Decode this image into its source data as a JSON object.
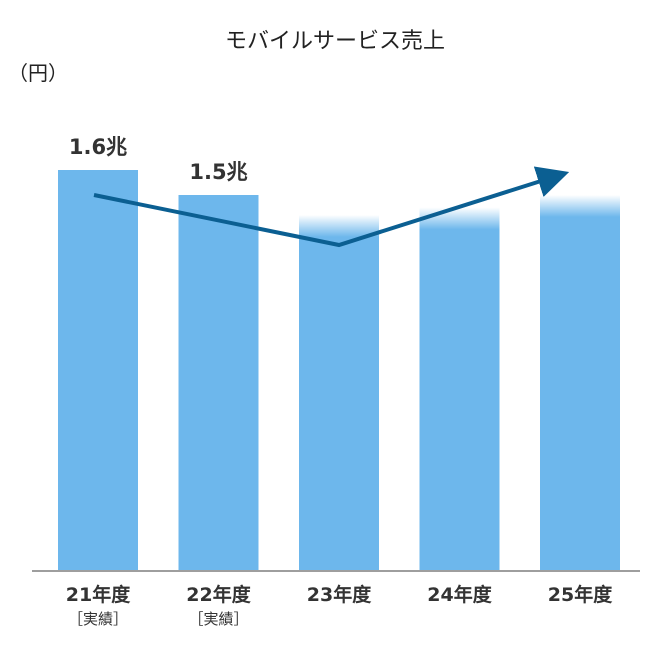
{
  "chart_data": {
    "type": "bar",
    "title": "モバイルサービス売上",
    "unit_label": "（円）",
    "categories": [
      "21年度",
      "22年度",
      "23年度",
      "24年度",
      "25年度"
    ],
    "category_notes": [
      "［実績］",
      "［実績］",
      "",
      "",
      ""
    ],
    "values": [
      1.6,
      1.5,
      1.42,
      1.45,
      1.5
    ],
    "data_labels": [
      "1.6兆",
      "1.5兆",
      "",
      "",
      ""
    ],
    "actual": [
      true,
      true,
      false,
      false,
      false
    ],
    "ylim": [
      0,
      1.6
    ],
    "trend": [
      1.5,
      1.44,
      1.3,
      1.45,
      1.57
    ],
    "colors": {
      "bar": "#6db7ec",
      "arrow": "#0b5f92",
      "axis": "#9e9e9e"
    }
  }
}
